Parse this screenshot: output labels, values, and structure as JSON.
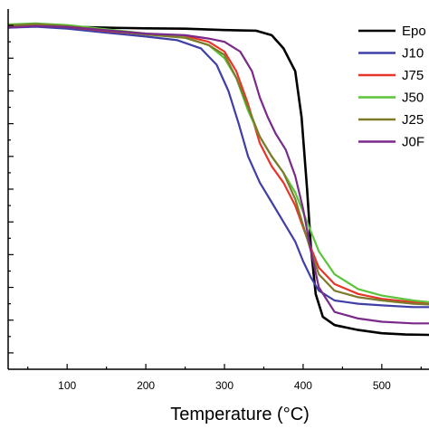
{
  "chart_data": {
    "type": "line",
    "xlabel": "Temperature (°C)",
    "ylabel": "",
    "xlim": [
      25,
      560
    ],
    "ylim": [
      -5,
      105
    ],
    "x_ticks": [
      100,
      200,
      300,
      400,
      500
    ],
    "x_tick_labels": [
      "100",
      "200",
      "300",
      "400",
      "500"
    ],
    "grid": false,
    "legend_position": "top-right",
    "series": [
      {
        "name": "Epo",
        "color": "#000000",
        "points": [
          [
            25,
            99.5
          ],
          [
            60,
            99.8
          ],
          [
            100,
            99.6
          ],
          [
            150,
            99.3
          ],
          [
            200,
            99.1
          ],
          [
            250,
            99
          ],
          [
            300,
            98.6
          ],
          [
            340,
            98.4
          ],
          [
            360,
            97
          ],
          [
            375,
            93
          ],
          [
            390,
            86
          ],
          [
            398,
            72
          ],
          [
            405,
            50
          ],
          [
            410,
            32
          ],
          [
            416,
            18
          ],
          [
            425,
            11
          ],
          [
            440,
            8.5
          ],
          [
            470,
            7
          ],
          [
            500,
            6
          ],
          [
            530,
            5.6
          ],
          [
            560,
            5.5
          ]
        ]
      },
      {
        "name": "J10",
        "color": "#3f3fa6",
        "points": [
          [
            25,
            99.3
          ],
          [
            60,
            99.6
          ],
          [
            100,
            99
          ],
          [
            150,
            97.8
          ],
          [
            200,
            96.6
          ],
          [
            240,
            95.5
          ],
          [
            270,
            93
          ],
          [
            290,
            88
          ],
          [
            305,
            80
          ],
          [
            318,
            70
          ],
          [
            330,
            60
          ],
          [
            345,
            52
          ],
          [
            360,
            46
          ],
          [
            375,
            40
          ],
          [
            390,
            34
          ],
          [
            400,
            28
          ],
          [
            410,
            23
          ],
          [
            420,
            19
          ],
          [
            440,
            16
          ],
          [
            470,
            15
          ],
          [
            500,
            14.5
          ],
          [
            540,
            14
          ],
          [
            560,
            14
          ]
        ]
      },
      {
        "name": "J75",
        "color": "#e8352a",
        "points": [
          [
            25,
            99.5
          ],
          [
            60,
            100
          ],
          [
            100,
            99.5
          ],
          [
            150,
            98.3
          ],
          [
            200,
            97.3
          ],
          [
            250,
            96.8
          ],
          [
            280,
            95
          ],
          [
            300,
            92
          ],
          [
            315,
            86
          ],
          [
            330,
            76
          ],
          [
            345,
            64
          ],
          [
            360,
            57
          ],
          [
            375,
            52
          ],
          [
            390,
            45
          ],
          [
            405,
            35
          ],
          [
            420,
            26
          ],
          [
            440,
            21
          ],
          [
            470,
            18
          ],
          [
            500,
            16.5
          ],
          [
            540,
            15.5
          ],
          [
            560,
            15
          ]
        ]
      },
      {
        "name": "J50",
        "color": "#5cc43a",
        "points": [
          [
            25,
            100.3
          ],
          [
            60,
            100.6
          ],
          [
            100,
            100.1
          ],
          [
            150,
            98.8
          ],
          [
            200,
            97.5
          ],
          [
            250,
            96.3
          ],
          [
            280,
            94
          ],
          [
            300,
            90
          ],
          [
            315,
            84
          ],
          [
            330,
            74
          ],
          [
            345,
            66
          ],
          [
            360,
            60
          ],
          [
            375,
            55
          ],
          [
            390,
            49
          ],
          [
            405,
            40
          ],
          [
            420,
            31
          ],
          [
            440,
            24
          ],
          [
            470,
            19.5
          ],
          [
            500,
            17.5
          ],
          [
            540,
            16
          ],
          [
            560,
            15.5
          ]
        ]
      },
      {
        "name": "J25",
        "color": "#7c7a2b",
        "points": [
          [
            25,
            100
          ],
          [
            60,
            100.4
          ],
          [
            100,
            99.8
          ],
          [
            150,
            98.5
          ],
          [
            200,
            97.2
          ],
          [
            250,
            96.2
          ],
          [
            280,
            94
          ],
          [
            300,
            91
          ],
          [
            315,
            84
          ],
          [
            330,
            75
          ],
          [
            345,
            66
          ],
          [
            360,
            60
          ],
          [
            375,
            55
          ],
          [
            390,
            47
          ],
          [
            400,
            39
          ],
          [
            410,
            31
          ],
          [
            420,
            24
          ],
          [
            440,
            19
          ],
          [
            470,
            17
          ],
          [
            500,
            16
          ],
          [
            540,
            15
          ],
          [
            560,
            14.8
          ]
        ]
      },
      {
        "name": "J0F",
        "color": "#7a2a8a",
        "points": [
          [
            25,
            99.4
          ],
          [
            60,
            99.8
          ],
          [
            100,
            99.5
          ],
          [
            150,
            98.5
          ],
          [
            200,
            97.5
          ],
          [
            250,
            97
          ],
          [
            280,
            96
          ],
          [
            300,
            95
          ],
          [
            320,
            92
          ],
          [
            335,
            86
          ],
          [
            345,
            78
          ],
          [
            355,
            72
          ],
          [
            365,
            67
          ],
          [
            378,
            62
          ],
          [
            390,
            54
          ],
          [
            400,
            44
          ],
          [
            410,
            31
          ],
          [
            420,
            20
          ],
          [
            440,
            12.5
          ],
          [
            470,
            10.5
          ],
          [
            500,
            9.5
          ],
          [
            540,
            9
          ],
          [
            560,
            9
          ]
        ]
      }
    ]
  }
}
